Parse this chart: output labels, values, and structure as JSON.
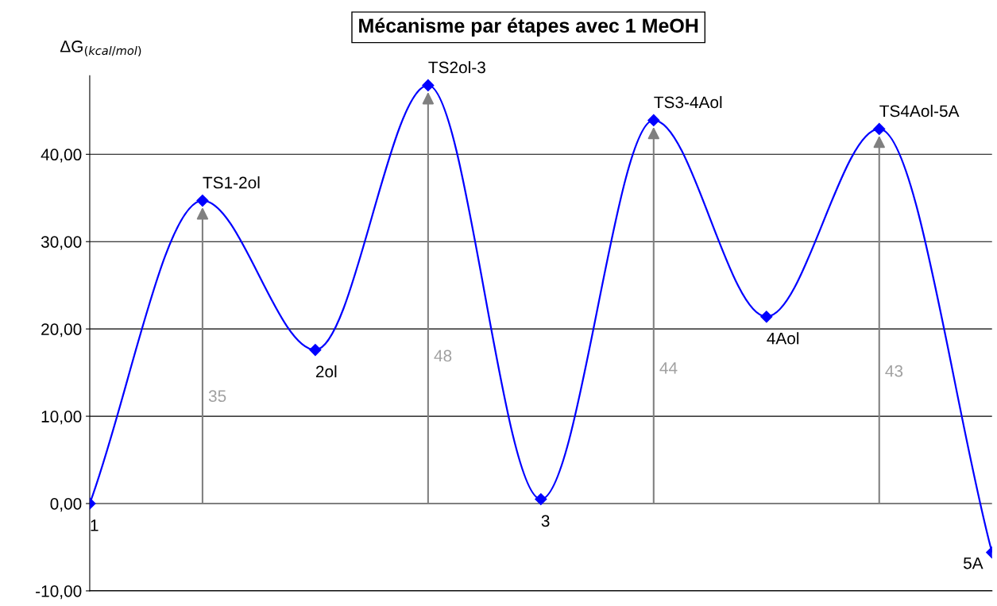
{
  "chart_data": {
    "type": "line",
    "title": "Mécanisme par étapes avec 1 MeOH",
    "ylabel": "ΔG$_{(kcal/mol)}$",
    "categories": [
      "1",
      "TS1-2ol",
      "2ol",
      "TS2ol-3",
      "3",
      "TS3-4Aol",
      "4Aol",
      "TS4Aol-5A",
      "5A"
    ],
    "series": [
      {
        "color": "#0000ff",
        "values": [
          0,
          34.7,
          17.6,
          47.9,
          0.5,
          43.9,
          21.4,
          42.9,
          -5.6
        ]
      }
    ],
    "annotations": [
      "35",
      "48",
      "44",
      "43"
    ],
    "ylim": [
      -10,
      49
    ],
    "yticks": [
      {
        "value": -10,
        "label": "-10,00"
      },
      {
        "value": 0,
        "label": "0,00"
      },
      {
        "value": 10,
        "label": "10,00"
      },
      {
        "value": 20,
        "label": "20,00"
      },
      {
        "value": 30,
        "label": "30,00"
      },
      {
        "value": 40,
        "label": "40,00"
      }
    ],
    "grid": "y",
    "marker": "diamond",
    "line_style": "solid",
    "tick_labels": "y",
    "legend": false
  }
}
